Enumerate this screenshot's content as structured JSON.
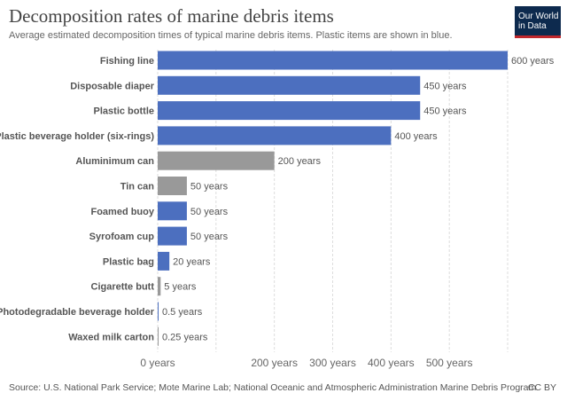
{
  "chart_data": {
    "type": "bar",
    "orientation": "horizontal",
    "title": "Decomposition rates of marine debris items",
    "subtitle": "Average estimated decomposition times of typical marine debris items. Plastic items are shown in blue.",
    "value_suffix": " years",
    "categories": [
      "Fishing line",
      "Disposable diaper",
      "Plastic bottle",
      "Plastic beverage holder (six-rings)",
      "Aluminimum can",
      "Tin can",
      "Foamed buoy",
      "Syrofoam cup",
      "Plastic bag",
      "Cigarette butt",
      "Photodegradable beverage holder",
      "Waxed milk carton"
    ],
    "values": [
      600,
      450,
      450,
      400,
      200,
      50,
      50,
      50,
      20,
      5,
      0.5,
      0.25
    ],
    "is_plastic": [
      true,
      true,
      true,
      true,
      false,
      false,
      true,
      true,
      true,
      false,
      true,
      false
    ],
    "value_labels": [
      "600 years",
      "450 years",
      "450 years",
      "400 years",
      "200 years",
      "50 years",
      "50 years",
      "50 years",
      "20 years",
      "5 years",
      "0.5 years",
      "0.25 years"
    ],
    "x_ticks": [
      {
        "value": 0,
        "label": "0 years"
      },
      {
        "value": 200,
        "label": "200 years"
      },
      {
        "value": 300,
        "label": "300 years"
      },
      {
        "value": 400,
        "label": "400 years"
      },
      {
        "value": 500,
        "label": "500 years"
      }
    ],
    "x_gridlines": [
      0,
      100,
      200,
      300,
      400,
      500,
      600
    ],
    "xlim": [
      0,
      600
    ],
    "colors": {
      "plastic": "#4c6fbf",
      "other": "#999999"
    }
  },
  "logo": {
    "line1": "Our World",
    "line2": "in Data"
  },
  "footer": {
    "source": "Source: U.S. National Park Service; Mote Marine Lab; National Oceanic and Atmospheric Administration Marine Debris Program",
    "license": "CC BY"
  }
}
